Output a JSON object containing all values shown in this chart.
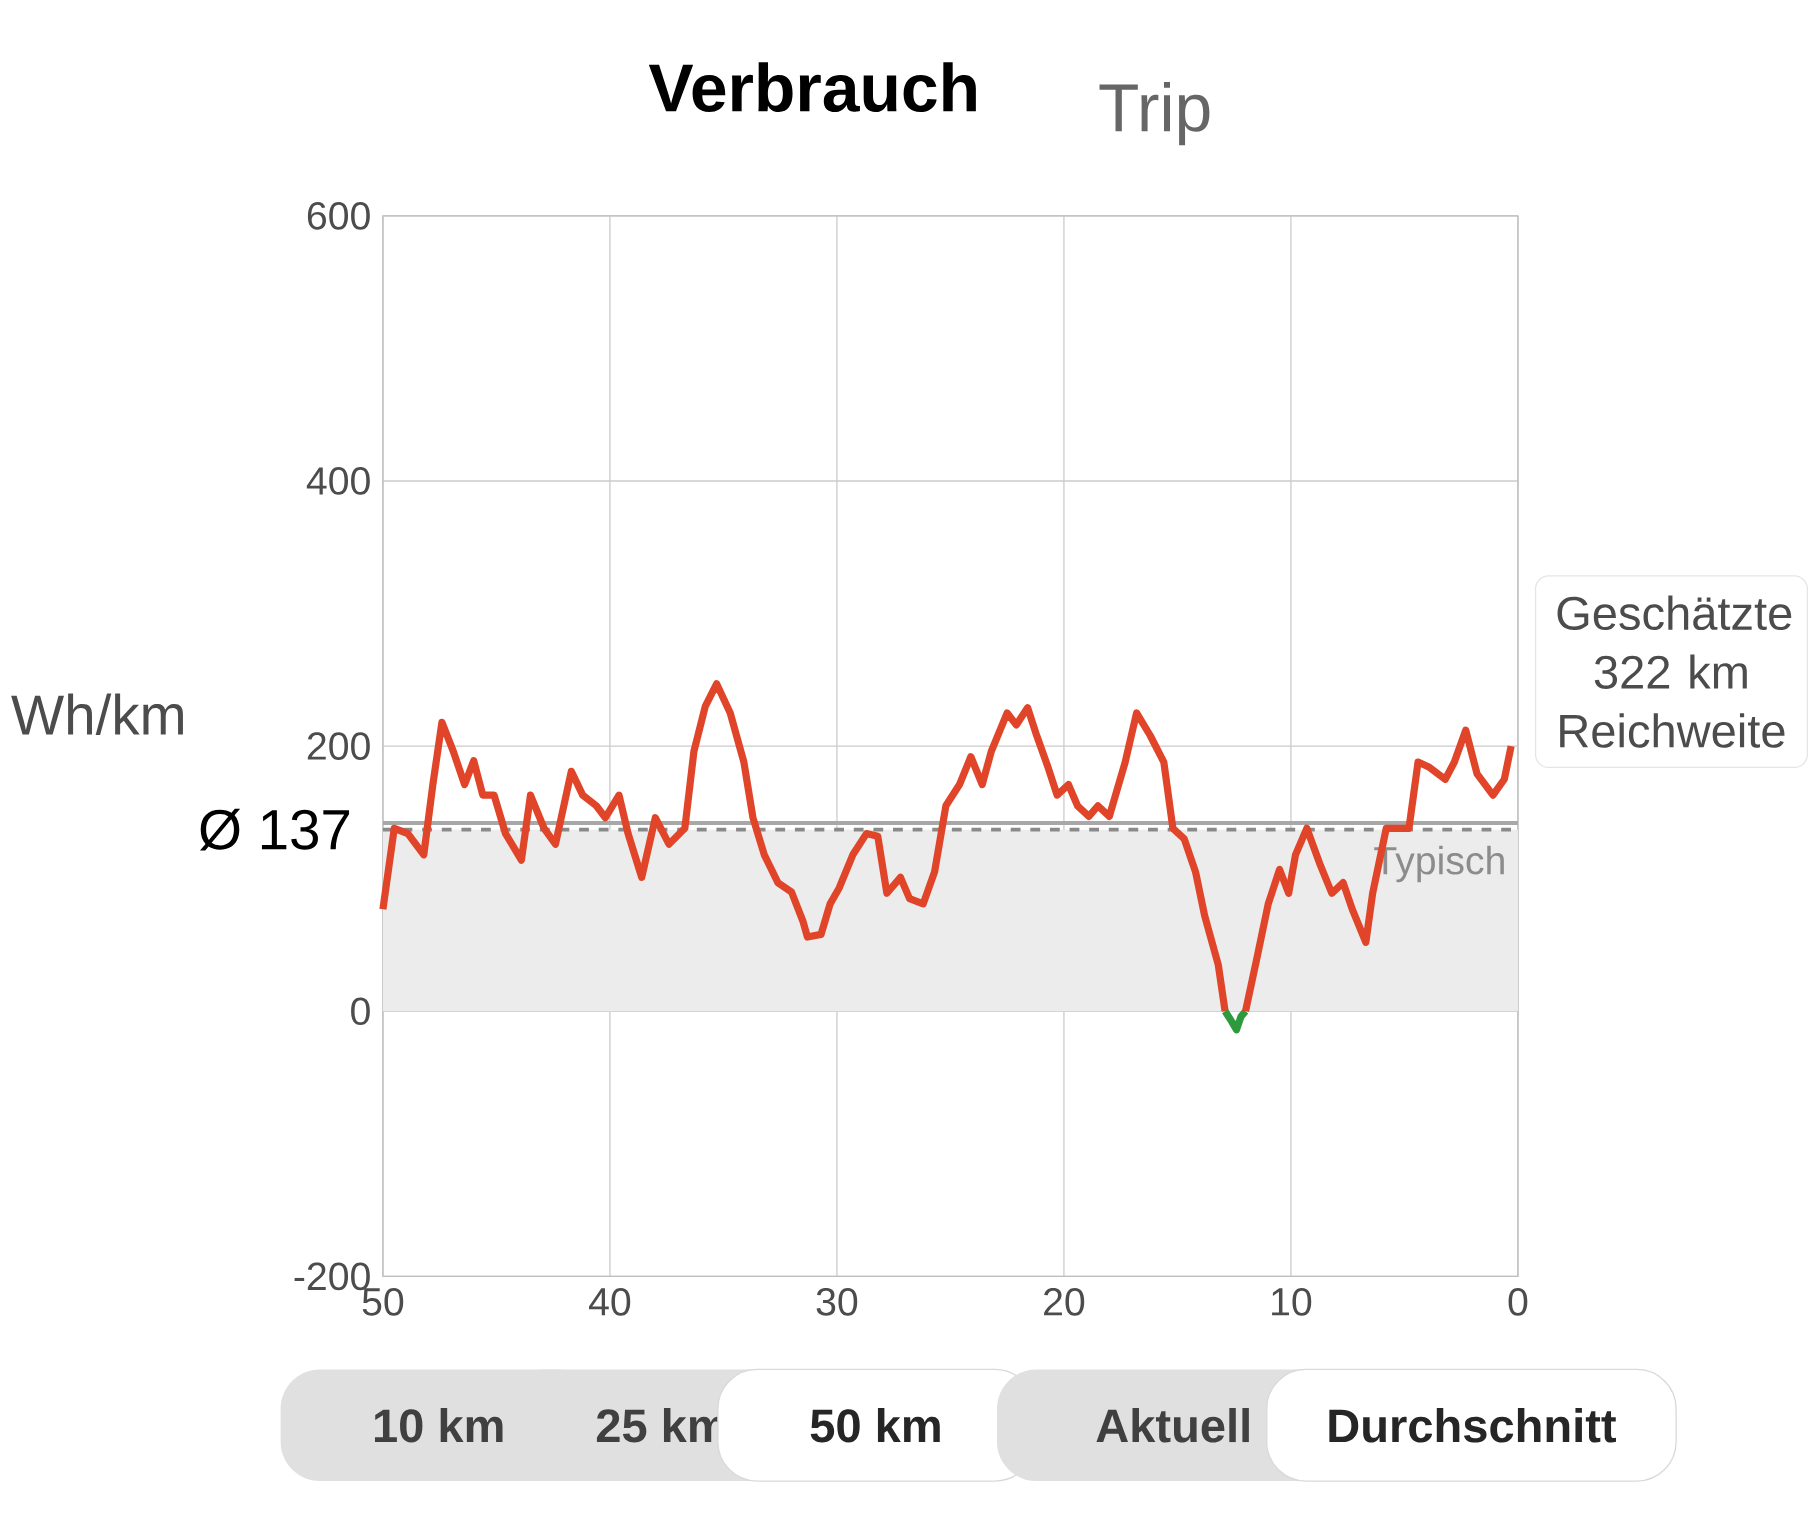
{
  "chart_data": {
    "type": "line",
    "title": "Verbrauch",
    "ylabel": "Wh/km",
    "xlim": [
      50,
      0
    ],
    "xticks": [
      50,
      40,
      30,
      20,
      10,
      0
    ],
    "ylim": [
      -200,
      600
    ],
    "yticks": [
      -200,
      0,
      200,
      400,
      600
    ],
    "grid": true,
    "marker": "none",
    "line_style": "solid",
    "series": [
      {
        "color": "#e0452a",
        "x": [
          50,
          49.5,
          48.9,
          48.2,
          47.8,
          47.4,
          46.9,
          46.4,
          46,
          45.6,
          45.1,
          44.6,
          43.9,
          43.5,
          42.9,
          42.4,
          41.7,
          41.2,
          40.6,
          40.2,
          39.6,
          39.2,
          38.6,
          38,
          37.4,
          36.7,
          36.3,
          35.8,
          35.3,
          34.7,
          34.1,
          33.7,
          33.2,
          32.6,
          32,
          31.5,
          31.3,
          30.7,
          30.3,
          29.9,
          29.3,
          28.7,
          28.2,
          27.8,
          27.2,
          26.8,
          26.2,
          25.7,
          25.2,
          24.6,
          24.1,
          23.6,
          23.2,
          22.5,
          22.1,
          21.6,
          21.2,
          20.7,
          20.3,
          19.8,
          19.4,
          18.9,
          18.5,
          18,
          17.3,
          16.8,
          16.2,
          15.6,
          15.2,
          14.7,
          14.2,
          13.8,
          13.2,
          12.9
        ],
        "values": [
          77,
          138,
          134,
          118,
          171,
          218,
          196,
          171,
          189,
          163,
          163,
          134,
          114,
          163,
          138,
          126,
          181,
          163,
          155,
          146,
          163,
          134,
          101,
          146,
          126,
          138,
          196,
          230,
          247,
          225,
          188,
          146,
          118,
          97,
          90,
          68,
          56,
          58,
          81,
          93,
          118,
          134,
          132,
          89,
          101,
          85,
          81,
          105,
          155,
          171,
          192,
          171,
          196,
          225,
          216,
          229,
          208,
          184,
          163,
          171,
          155,
          147,
          155,
          147,
          188,
          225,
          208,
          188,
          138,
          130,
          105,
          72,
          35,
          0
        ]
      },
      {
        "color": "#2e9a3e",
        "x": [
          12.9,
          12.6,
          12.4,
          12.2,
          12.0
        ],
        "values": [
          0,
          -8,
          -14,
          -4,
          0
        ]
      },
      {
        "color": "#e0452a",
        "x": [
          12.0,
          11.5,
          11,
          10.5,
          10.1,
          9.8,
          9.3,
          8.7,
          8.2,
          7.7,
          7.3,
          6.7,
          6.4,
          5.8,
          5.2,
          4.8,
          4.4,
          3.9,
          3.2,
          2.8,
          2.3,
          1.8,
          1.1,
          0.6,
          0.3
        ],
        "values": [
          0,
          40,
          81,
          107,
          89,
          118,
          138,
          110,
          89,
          97,
          77,
          52,
          89,
          138,
          138,
          138,
          188,
          184,
          175,
          188,
          212,
          179,
          163,
          175,
          200
        ]
      }
    ],
    "ref_lines": [
      {
        "axis": "y",
        "value": 137,
        "label": "Ø 137",
        "line_style": "dashed",
        "color": "#8a8a8a"
      },
      {
        "axis": "y",
        "value": 142,
        "label": "Typisch",
        "line_style": "solid",
        "color": "#a8a8a8"
      }
    ],
    "bands": [
      {
        "axis": "y",
        "from": 0,
        "to": 137,
        "color": "#ececec"
      }
    ],
    "annotations": [
      "Trip",
      "Geschätzte 322 km Reichweite",
      "10 km",
      "25 km",
      "50 km",
      "Aktuell",
      "Durchschnitt"
    ]
  }
}
